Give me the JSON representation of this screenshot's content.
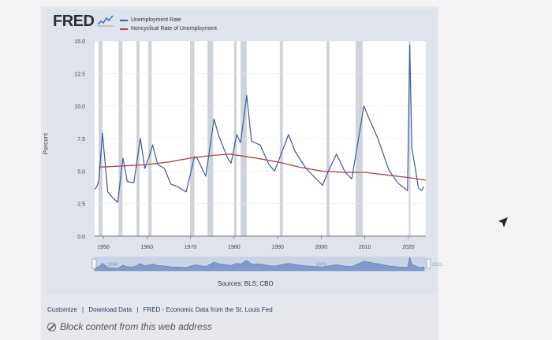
{
  "header": {
    "logo_text": "FRED"
  },
  "legend": {
    "items": [
      {
        "label": "Unemployment Rate",
        "color": "#3a5a9c"
      },
      {
        "label": "Noncyclical Rate of Unemployment",
        "color": "#a8474a"
      }
    ]
  },
  "footer": {
    "sources": "Sources: BLS; CBO",
    "links": [
      "Customize",
      "Download Data",
      "FRED - Economic Data from the St. Louis Fed"
    ],
    "separator": "|",
    "blocked_text": "Block content from this web address"
  },
  "chart_data": {
    "type": "line",
    "xlabel": "",
    "ylabel": "Percent",
    "xlim": [
      1948,
      2024
    ],
    "ylim": [
      0,
      15
    ],
    "x_ticks": [
      1950,
      1960,
      1970,
      1980,
      1990,
      2000,
      2010,
      2020
    ],
    "y_ticks": [
      "0.0",
      "2.5",
      "5.0",
      "7.5",
      "10.0",
      "12.5",
      "15.0"
    ],
    "recessions": [
      [
        1948.9,
        1949.8
      ],
      [
        1953.5,
        1954.4
      ],
      [
        1957.6,
        1958.3
      ],
      [
        1960.3,
        1961.1
      ],
      [
        1969.9,
        1970.9
      ],
      [
        1973.9,
        1975.2
      ],
      [
        1980.0,
        1980.6
      ],
      [
        1981.5,
        1982.9
      ],
      [
        1990.5,
        1991.2
      ],
      [
        2001.2,
        2001.9
      ],
      [
        2007.9,
        2009.5
      ],
      [
        2020.1,
        2020.4
      ]
    ],
    "series": [
      {
        "name": "Unemployment Rate",
        "color": "#3a5a9c",
        "points": [
          [
            1948.0,
            3.6
          ],
          [
            1948.5,
            3.8
          ],
          [
            1949.0,
            4.3
          ],
          [
            1949.8,
            7.9
          ],
          [
            1950.5,
            5.3
          ],
          [
            1951.0,
            3.4
          ],
          [
            1952.0,
            3.0
          ],
          [
            1953.3,
            2.6
          ],
          [
            1954.5,
            6.0
          ],
          [
            1955.5,
            4.2
          ],
          [
            1957.0,
            4.1
          ],
          [
            1958.5,
            7.5
          ],
          [
            1959.5,
            5.2
          ],
          [
            1960.5,
            6.1
          ],
          [
            1961.3,
            7.0
          ],
          [
            1962.5,
            5.5
          ],
          [
            1964.0,
            5.2
          ],
          [
            1965.5,
            4.0
          ],
          [
            1967.0,
            3.8
          ],
          [
            1969.0,
            3.4
          ],
          [
            1970.9,
            6.1
          ],
          [
            1971.5,
            6.0
          ],
          [
            1973.5,
            4.6
          ],
          [
            1975.4,
            9.0
          ],
          [
            1976.5,
            7.7
          ],
          [
            1978.5,
            6.0
          ],
          [
            1979.3,
            5.6
          ],
          [
            1980.6,
            7.8
          ],
          [
            1981.5,
            7.2
          ],
          [
            1982.9,
            10.8
          ],
          [
            1984.0,
            7.3
          ],
          [
            1986.0,
            7.0
          ],
          [
            1988.0,
            5.5
          ],
          [
            1989.3,
            5.0
          ],
          [
            1992.5,
            7.8
          ],
          [
            1994.0,
            6.5
          ],
          [
            1996.5,
            5.2
          ],
          [
            2000.3,
            3.9
          ],
          [
            2001.5,
            4.9
          ],
          [
            2003.5,
            6.3
          ],
          [
            2005.5,
            4.9
          ],
          [
            2007.0,
            4.4
          ],
          [
            2009.8,
            10.0
          ],
          [
            2011.0,
            9.0
          ],
          [
            2013.0,
            7.5
          ],
          [
            2015.5,
            5.1
          ],
          [
            2017.5,
            4.1
          ],
          [
            2019.8,
            3.5
          ],
          [
            2020.3,
            14.7
          ],
          [
            2020.8,
            6.7
          ],
          [
            2021.5,
            5.4
          ],
          [
            2022.3,
            3.7
          ],
          [
            2023.0,
            3.5
          ],
          [
            2023.6,
            3.8
          ]
        ]
      },
      {
        "name": "Noncyclical Rate of Unemployment",
        "color": "#a8474a",
        "points": [
          [
            1949.0,
            5.3
          ],
          [
            1955.0,
            5.4
          ],
          [
            1960.0,
            5.5
          ],
          [
            1965.0,
            5.7
          ],
          [
            1970.0,
            6.0
          ],
          [
            1975.0,
            6.2
          ],
          [
            1979.0,
            6.3
          ],
          [
            1985.0,
            6.0
          ],
          [
            1990.0,
            5.7
          ],
          [
            1995.0,
            5.3
          ],
          [
            2000.0,
            5.0
          ],
          [
            2005.0,
            4.9
          ],
          [
            2010.0,
            4.9
          ],
          [
            2015.0,
            4.7
          ],
          [
            2020.0,
            4.5
          ],
          [
            2024.0,
            4.3
          ]
        ]
      }
    ],
    "navigator": {
      "labels": [
        "1950",
        "2000",
        "2021"
      ]
    }
  }
}
